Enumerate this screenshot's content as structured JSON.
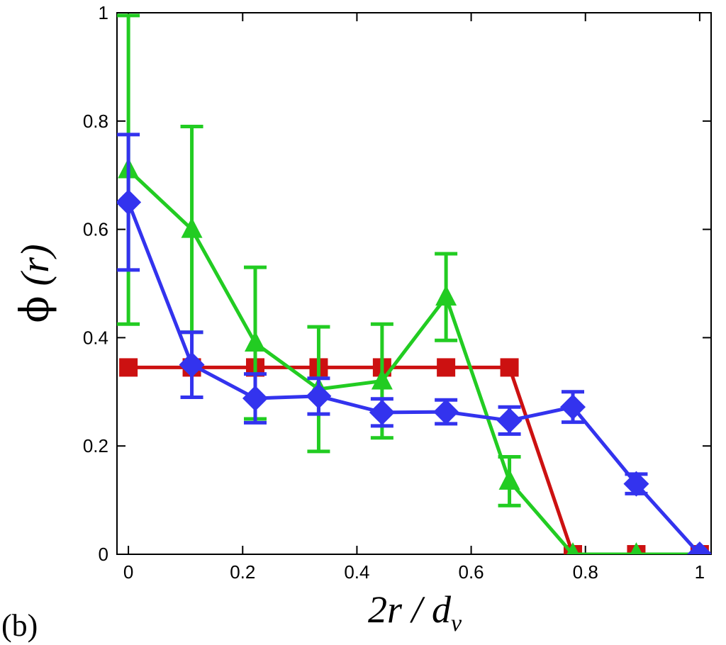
{
  "chart_data": {
    "type": "line",
    "panel_label": "(b)",
    "xlabel": "2r / d",
    "xlabel_sub": "v",
    "ylabel_phi": "ϕ",
    "ylabel_r": "(r)",
    "xlim": [
      -0.02,
      1.02
    ],
    "ylim": [
      0,
      1
    ],
    "xticks": [
      "0",
      "0.2",
      "0.4",
      "0.6",
      "0.8",
      "1"
    ],
    "yticks": [
      "0",
      "0.2",
      "0.4",
      "0.6",
      "0.8",
      "1"
    ],
    "grid": false,
    "x": [
      0,
      0.111,
      0.222,
      0.333,
      0.444,
      0.556,
      0.667,
      0.778,
      0.889,
      1.0
    ],
    "series": [
      {
        "name": "red squares",
        "color": "#cc1111",
        "marker": "square",
        "values": [
          0.345,
          0.345,
          0.345,
          0.345,
          0.345,
          0.345,
          0.345,
          0,
          0,
          0
        ],
        "errors": [
          0,
          0,
          0,
          0,
          0,
          0,
          0,
          0,
          0,
          0
        ]
      },
      {
        "name": "green triangles",
        "color": "#22cc22",
        "marker": "triangle",
        "values": [
          0.71,
          0.6,
          0.39,
          0.305,
          0.32,
          0.475,
          0.135,
          0,
          0,
          0
        ],
        "errors": [
          0.285,
          0.19,
          0.14,
          0.115,
          0.105,
          0.08,
          0.045,
          0,
          0,
          0
        ]
      },
      {
        "name": "blue diamonds",
        "color": "#3333ee",
        "marker": "diamond",
        "values": [
          0.65,
          0.35,
          0.288,
          0.292,
          0.262,
          0.263,
          0.247,
          0.272,
          0.13,
          0
        ],
        "errors": [
          0.125,
          0.06,
          0.045,
          0.033,
          0.025,
          0.022,
          0.025,
          0.028,
          0.018,
          0
        ]
      }
    ]
  }
}
